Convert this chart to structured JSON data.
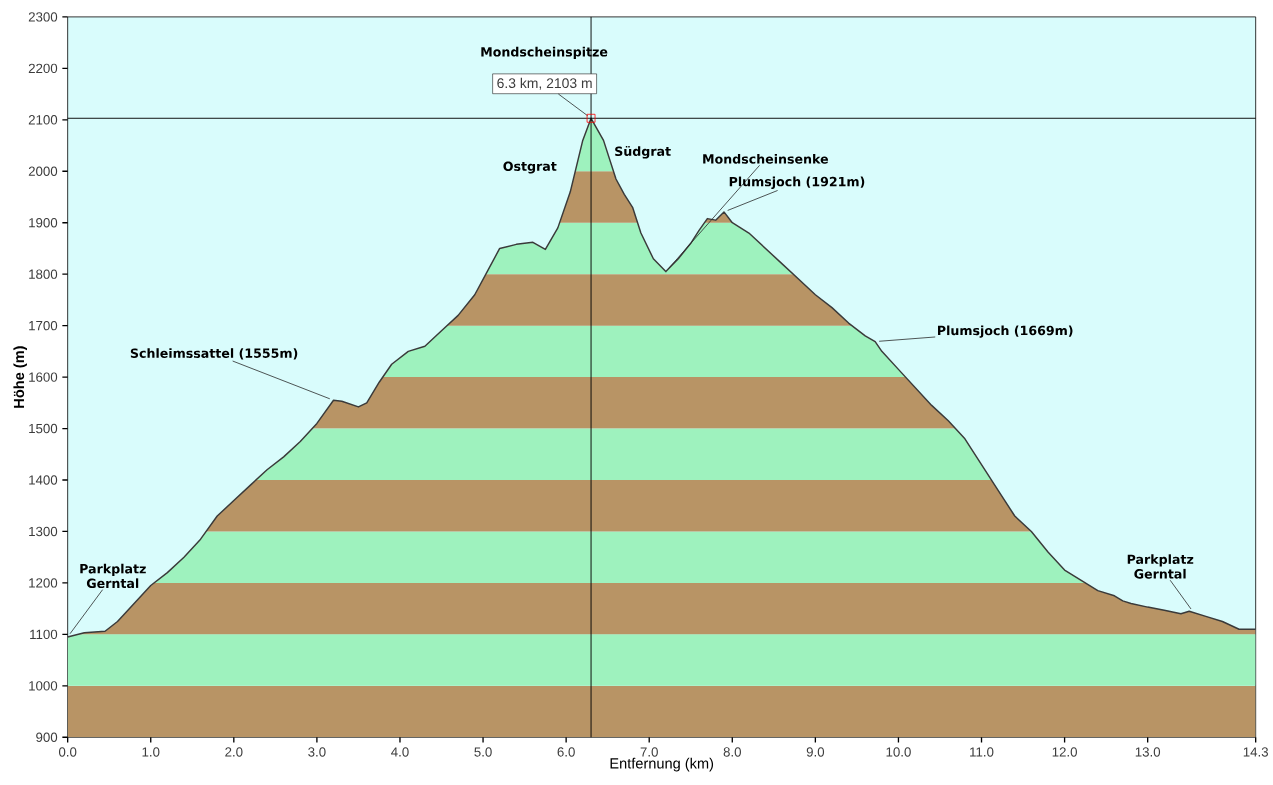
{
  "chart_data": {
    "type": "line",
    "xlabel": "Entfernung  (km)",
    "ylabel": "Höhe (m)",
    "xlim": [
      0,
      14.3
    ],
    "ylim": [
      900,
      2300
    ],
    "xticks": [
      {
        "value": 0,
        "label": "0.0"
      },
      {
        "value": 1,
        "label": "1.0"
      },
      {
        "value": 2,
        "label": "2.0"
      },
      {
        "value": 3,
        "label": "3.0"
      },
      {
        "value": 4,
        "label": "4.0"
      },
      {
        "value": 5,
        "label": "5.0"
      },
      {
        "value": 6,
        "label": "6.0"
      },
      {
        "value": 7,
        "label": "7.0"
      },
      {
        "value": 8,
        "label": "8.0"
      },
      {
        "value": 9,
        "label": "9.0"
      },
      {
        "value": 10,
        "label": "10.0"
      },
      {
        "value": 11,
        "label": "11.0"
      },
      {
        "value": 12,
        "label": "12.0"
      },
      {
        "value": 13,
        "label": "13.0"
      },
      {
        "value": 14.3,
        "label": "14.3"
      }
    ],
    "yticks": [
      900,
      1000,
      1100,
      1200,
      1300,
      1400,
      1500,
      1600,
      1700,
      1800,
      1900,
      2000,
      2100,
      2200,
      2300
    ],
    "series": [
      {
        "color": "#3a3a3a",
        "x": [
          0.0,
          0.2,
          0.45,
          0.6,
          0.8,
          1.0,
          1.2,
          1.4,
          1.6,
          1.8,
          2.0,
          2.2,
          2.4,
          2.6,
          2.8,
          3.0,
          3.2,
          3.3,
          3.5,
          3.6,
          3.75,
          3.9,
          4.1,
          4.3,
          4.5,
          4.7,
          4.9,
          5.05,
          5.2,
          5.4,
          5.6,
          5.75,
          5.9,
          6.05,
          6.2,
          6.3,
          6.45,
          6.6,
          6.7,
          6.8,
          6.9,
          7.05,
          7.2,
          7.35,
          7.5,
          7.6,
          7.7,
          7.8,
          7.9,
          8.0,
          8.2,
          8.4,
          8.6,
          8.8,
          9.0,
          9.2,
          9.4,
          9.6,
          9.72,
          9.8,
          10.0,
          10.2,
          10.4,
          10.6,
          10.8,
          11.0,
          11.2,
          11.4,
          11.6,
          11.8,
          12.0,
          12.2,
          12.4,
          12.6,
          12.7,
          12.8,
          13.0,
          13.2,
          13.4,
          13.5,
          13.7,
          13.9,
          14.1,
          14.3
        ],
        "values": [
          1095,
          1103,
          1106,
          1125,
          1160,
          1195,
          1220,
          1250,
          1285,
          1330,
          1360,
          1390,
          1420,
          1445,
          1475,
          1510,
          1555,
          1553,
          1542,
          1550,
          1590,
          1625,
          1650,
          1660,
          1690,
          1720,
          1760,
          1805,
          1850,
          1858,
          1862,
          1848,
          1890,
          1960,
          2060,
          2103,
          2060,
          1985,
          1955,
          1930,
          1880,
          1830,
          1805,
          1830,
          1860,
          1885,
          1908,
          1905,
          1921,
          1900,
          1880,
          1850,
          1820,
          1790,
          1760,
          1735,
          1705,
          1680,
          1669,
          1650,
          1615,
          1580,
          1545,
          1515,
          1480,
          1430,
          1380,
          1330,
          1300,
          1260,
          1225,
          1205,
          1185,
          1175,
          1165,
          1160,
          1153,
          1147,
          1140,
          1145,
          1135,
          1125,
          1110,
          1110
        ]
      }
    ],
    "bands": [
      {
        "axis": "y",
        "from": 900,
        "to": 1000,
        "color": "#b89465"
      },
      {
        "axis": "y",
        "from": 1000,
        "to": 1100,
        "color": "#9ef2be"
      },
      {
        "axis": "y",
        "from": 1100,
        "to": 1200,
        "color": "#b89465"
      },
      {
        "axis": "y",
        "from": 1200,
        "to": 1300,
        "color": "#9ef2be"
      },
      {
        "axis": "y",
        "from": 1300,
        "to": 1400,
        "color": "#b89465"
      },
      {
        "axis": "y",
        "from": 1400,
        "to": 1500,
        "color": "#9ef2be"
      },
      {
        "axis": "y",
        "from": 1500,
        "to": 1600,
        "color": "#b89465"
      },
      {
        "axis": "y",
        "from": 1600,
        "to": 1700,
        "color": "#9ef2be"
      },
      {
        "axis": "y",
        "from": 1700,
        "to": 1800,
        "color": "#b89465"
      },
      {
        "axis": "y",
        "from": 1800,
        "to": 1900,
        "color": "#9ef2be"
      },
      {
        "axis": "y",
        "from": 1900,
        "to": 2000,
        "color": "#b89465"
      },
      {
        "axis": "y",
        "from": 2000,
        "to": 2100,
        "color": "#9ef2be"
      }
    ],
    "ref_lines": [
      {
        "axis": "x",
        "value": 6.3,
        "color": "#000000"
      },
      {
        "axis": "y",
        "value": 2103,
        "color": "#000000"
      }
    ],
    "annotations": [
      "Mondscheinspitze",
      {
        "text": "6.3 km, 2103 m",
        "x": 6.3,
        "y": 2103
      },
      "Ostgrat",
      "Südgrat",
      {
        "text": "Mondscheinsenke",
        "x": 7.2,
        "y": 1805
      },
      {
        "text": "Plumsjoch (1921m)",
        "x": 7.9,
        "y": 1921
      },
      {
        "text": "Plumsjoch (1669m)",
        "x": 9.72,
        "y": 1669
      },
      {
        "text": "Schleimssattel (1555m)",
        "x": 3.2,
        "y": 1555
      },
      {
        "text": "Parkplatz Gerntal",
        "x": 0.0,
        "y": 1095
      },
      {
        "text": "Parkplatz Gerntal",
        "x": 13.55,
        "y": 1143
      }
    ]
  }
}
